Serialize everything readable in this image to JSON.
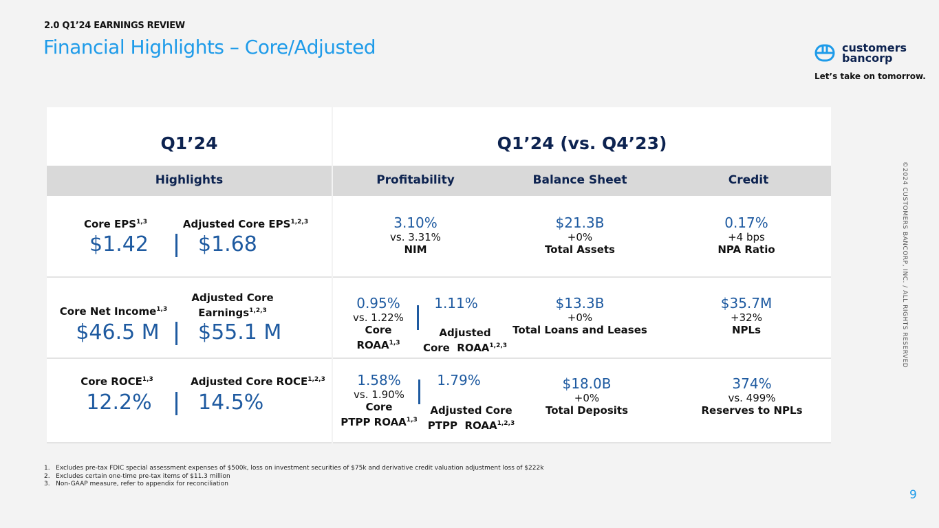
{
  "header": {
    "kicker": "2.0 Q1’24 EARNINGS REVIEW",
    "title": "Financial Highlights – Core/Adjusted"
  },
  "brand": {
    "name_line1": "customers",
    "name_line2": "bancorp",
    "tagline": "Let’s take on tomorrow."
  },
  "left": {
    "period": "Q1’24",
    "band": "Highlights",
    "rows": [
      {
        "l_label": "Core EPS",
        "l_sup": "1,3",
        "l_value": "$1.42",
        "r_label": "Adjusted Core EPS",
        "r_sup": "1,2,3",
        "r_value": "$1.68"
      },
      {
        "l_label": "Core Net Income",
        "l_sup": "1,3",
        "l_value": "$46.5 M",
        "r_label_1": "Adjusted Core",
        "r_label": "Earnings",
        "r_sup": "1,2,3",
        "r_value": "$55.1 M"
      },
      {
        "l_label": "Core ROCE",
        "l_sup": "1,3",
        "l_value": "12.2%",
        "r_label": "Adjusted Core ROCE",
        "r_sup": "1,2,3",
        "r_value": "14.5%"
      }
    ]
  },
  "right": {
    "period": "Q1’24 (vs. Q4’23)",
    "bands": [
      "Profitability",
      "Balance Sheet",
      "Credit"
    ],
    "profitability": [
      {
        "value": "3.10%",
        "compare": "vs. 3.31%",
        "label": "NIM"
      },
      {
        "value": "0.95%",
        "compare": "vs. 1.22%",
        "label_1": "Core",
        "label_2": "ROAA",
        "sup": "1,3",
        "adj_value": "1.11%",
        "adj_label_1": "Adjusted",
        "adj_label_2": "Core  ROAA",
        "adj_sup": "1,2,3"
      },
      {
        "value": "1.58%",
        "compare": "vs. 1.90%",
        "label_1": "Core",
        "label_2": "PTPP ROAA",
        "sup": "1,3",
        "adj_value": "1.79%",
        "adj_label_1": "Adjusted Core",
        "adj_label_2": "PTPP  ROAA",
        "adj_sup": "1,2,3"
      }
    ],
    "balance": [
      {
        "value": "$21.3B",
        "compare": "+0%",
        "label": "Total Assets"
      },
      {
        "value": "$13.3B",
        "compare": "+0%",
        "label": "Total Loans and Leases"
      },
      {
        "value": "$18.0B",
        "compare": "+0%",
        "label": "Total Deposits"
      }
    ],
    "credit": [
      {
        "value": "0.17%",
        "compare": "+4 bps",
        "label": "NPA Ratio"
      },
      {
        "value": "$35.7M",
        "compare": "+32%",
        "label": "NPLs"
      },
      {
        "value": "374%",
        "compare": "vs. 499%",
        "label": "Reserves to NPLs"
      }
    ]
  },
  "footnotes": [
    "1.   Excludes pre-tax FDIC special assessment expenses of $500k, loss on investment securities of $75k and derivative credit valuation adjustment loss of $222k",
    "2.   Excludes certain one-time pre-tax items of $11.3 million",
    "3.   Non-GAAP measure, refer to appendix for reconciliation"
  ],
  "copyright": "©2024 CUSTOMERS BANCORP, INC. / ALL RIGHTS RESERVED",
  "page_number": "9"
}
